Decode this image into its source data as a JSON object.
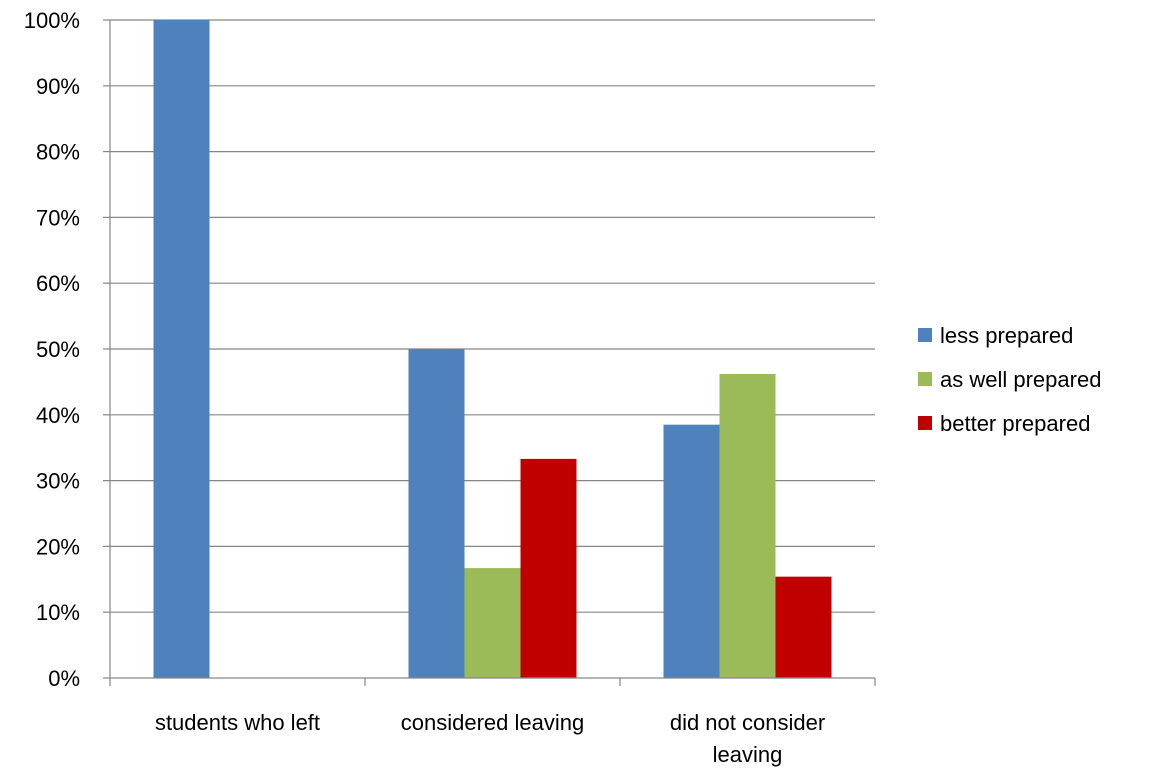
{
  "chart_data": {
    "type": "bar",
    "categories": [
      "students who left",
      "considered leaving",
      "did not consider leaving"
    ],
    "category_lines": [
      [
        "students who left"
      ],
      [
        "considered leaving"
      ],
      [
        "did not consider",
        "leaving"
      ]
    ],
    "series": [
      {
        "name": "less prepared",
        "color": "#4F81BD",
        "values": [
          100,
          50,
          38.5
        ]
      },
      {
        "name": "as well prepared",
        "color": "#9BBB59",
        "values": [
          0,
          16.7,
          46.2
        ]
      },
      {
        "name": "better prepared",
        "color": "#C00000",
        "values": [
          0,
          33.3,
          15.4
        ]
      }
    ],
    "ylim": [
      0,
      100
    ],
    "yticks": [
      "0%",
      "10%",
      "20%",
      "30%",
      "40%",
      "50%",
      "60%",
      "70%",
      "80%",
      "90%",
      "100%"
    ],
    "grid": true,
    "legend_position": "right"
  }
}
